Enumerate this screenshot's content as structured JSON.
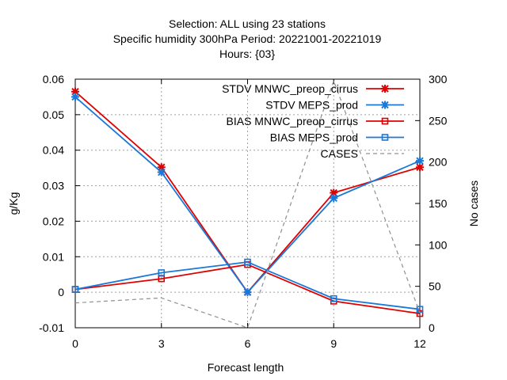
{
  "chart_data": {
    "type": "line",
    "title": [
      "Selection: ALL using    23 stations",
      "Specific humidity 300hPa   Period: 20221001-20221019",
      "Hours: {03}"
    ],
    "xlabel": "Forecast length",
    "ylabel": "g/Kg",
    "y2label": "No cases",
    "x": [
      0,
      3,
      6,
      9,
      12
    ],
    "xticks": [
      "0",
      "3",
      "6",
      "9",
      "12"
    ],
    "xlim": [
      0,
      12
    ],
    "ylim": [
      -0.01,
      0.06
    ],
    "yticks": [
      "-0.01",
      "0",
      "0.01",
      "0.02",
      "0.03",
      "0.04",
      "0.05",
      "0.06"
    ],
    "y2lim": [
      0,
      300
    ],
    "y2ticks": [
      "0",
      "50",
      "100",
      "150",
      "200",
      "250",
      "300"
    ],
    "grid": true,
    "legend_position": "top-right",
    "series": [
      {
        "name": "STDV MNWC_preop_cirrus",
        "axis": "y",
        "color": "#e00000",
        "marker": "x-star",
        "values": [
          0.0565,
          0.0352,
          0.0,
          0.028,
          0.0352
        ]
      },
      {
        "name": "STDV MEPS_prod",
        "axis": "y",
        "color": "#1a78d8",
        "marker": "x-star",
        "values": [
          0.055,
          0.0338,
          0.0,
          0.0265,
          0.037
        ]
      },
      {
        "name": "BIAS MNWC_preop_cirrus",
        "axis": "y",
        "color": "#e00000",
        "marker": "square",
        "values": [
          0.0008,
          0.0038,
          0.0078,
          -0.0025,
          -0.006
        ]
      },
      {
        "name": "BIAS MEPS_prod",
        "axis": "y",
        "color": "#1a78d8",
        "marker": "square",
        "values": [
          0.0008,
          0.0055,
          0.0085,
          -0.0018,
          -0.0048
        ]
      },
      {
        "name": "CASES",
        "axis": "y2",
        "color": "#909090",
        "marker": "none",
        "dashed": true,
        "values": [
          30,
          36,
          0,
          298,
          18
        ]
      }
    ]
  }
}
